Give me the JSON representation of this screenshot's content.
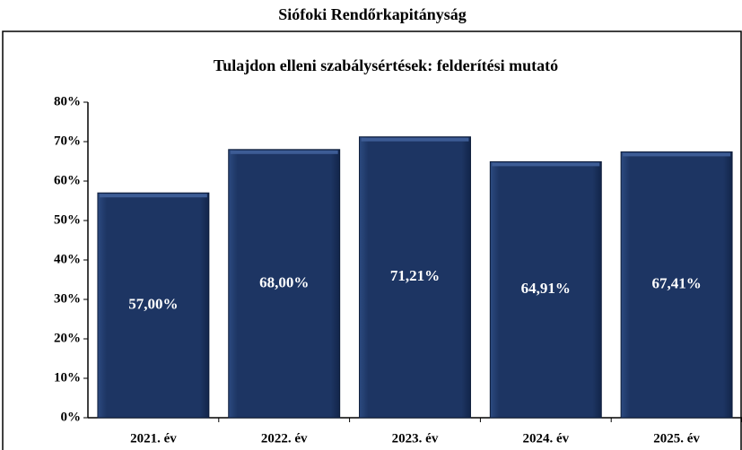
{
  "chart_data": {
    "type": "bar",
    "header": "Siófoki Rendőrkapitányság",
    "title": "Tulajdon elleni szabálysértések: felderítési mutató",
    "categories": [
      "2021. év",
      "2022. év",
      "2023. év",
      "2024. év",
      "2025. év"
    ],
    "values": [
      57,
      68,
      71.21,
      64.91,
      67.41
    ],
    "value_labels": [
      "57,00%",
      "68,00%",
      "71,21%",
      "64,91%",
      "67,41%"
    ],
    "color": "#1d3563",
    "ylim": [
      0,
      80
    ],
    "yticks": [
      {
        "value": 0,
        "label": "0%"
      },
      {
        "value": 10,
        "label": "10%"
      },
      {
        "value": 20,
        "label": "20%"
      },
      {
        "value": 30,
        "label": "30%"
      },
      {
        "value": 40,
        "label": "40%"
      },
      {
        "value": 50,
        "label": "50%"
      },
      {
        "value": 60,
        "label": "60%"
      },
      {
        "value": 70,
        "label": "70%"
      },
      {
        "value": 80,
        "label": "80%"
      }
    ]
  }
}
